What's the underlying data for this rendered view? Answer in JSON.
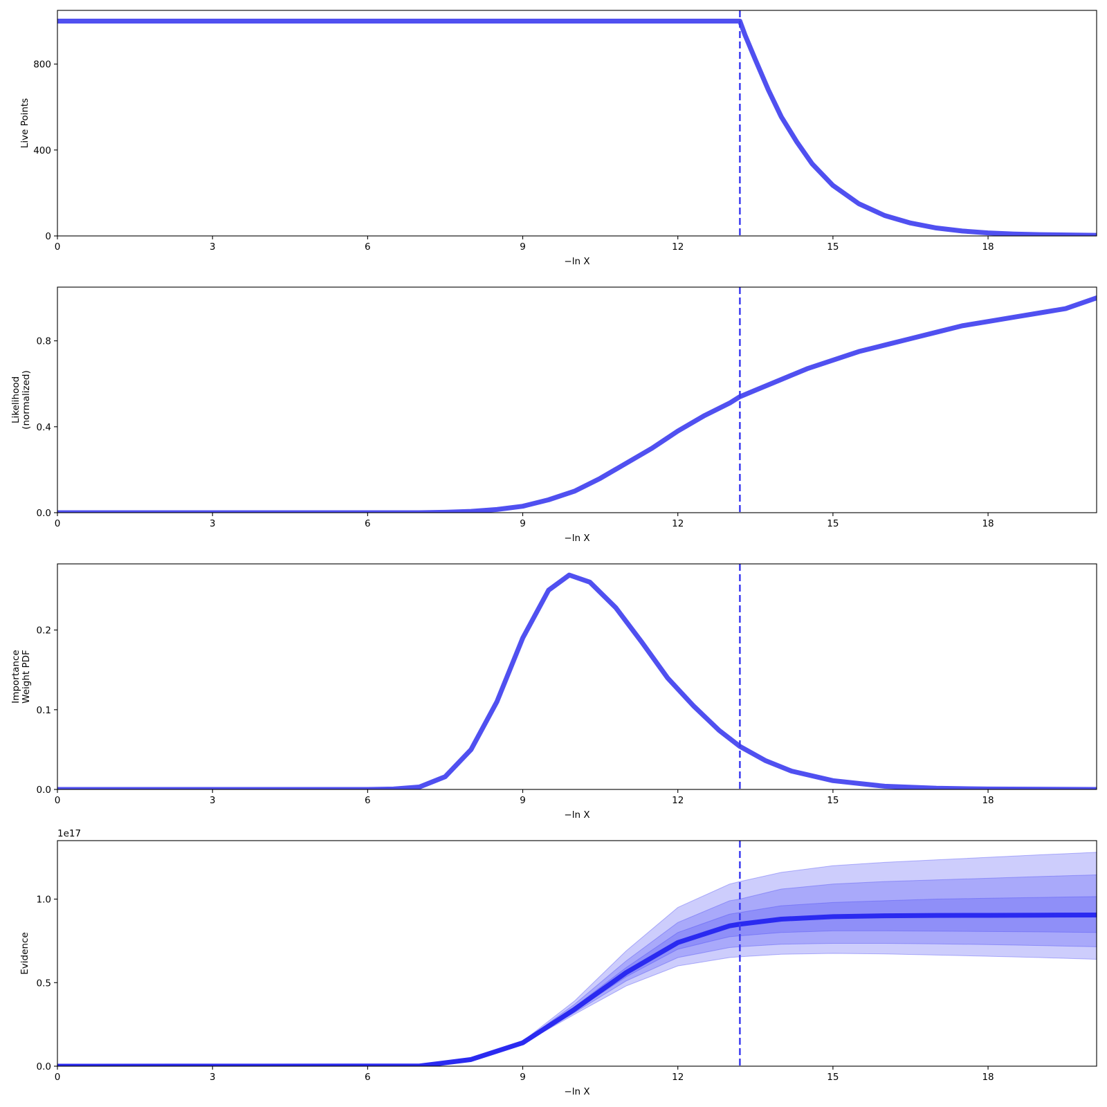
{
  "chart_data": [
    {
      "type": "line",
      "xlabel": "−ln X",
      "ylabel": "Live Points",
      "xlim": [
        0,
        20.1
      ],
      "ylim": [
        0,
        1050
      ],
      "xticks": [
        0,
        3,
        6,
        9,
        12,
        15,
        18
      ],
      "xtick_labels": [
        "0",
        "3",
        "6",
        "9",
        "12",
        "15",
        "18"
      ],
      "yticks": [
        0,
        400,
        800
      ],
      "ytick_labels": [
        "0",
        "400",
        "800"
      ],
      "vline_x": 13.2,
      "line_color": "#5050f0",
      "grid": false,
      "series": [
        {
          "x": [
            0,
            13.2,
            13.3,
            13.5,
            13.75,
            14.0,
            14.3,
            14.6,
            15.0,
            15.5,
            16.0,
            16.5,
            17.0,
            17.5,
            18.0,
            18.5,
            19.0,
            20.1
          ],
          "y": [
            1000,
            1000,
            935,
            820,
            680,
            555,
            438,
            335,
            235,
            150,
            95,
            60,
            37,
            23,
            14,
            9,
            6,
            3
          ]
        }
      ]
    },
    {
      "type": "line",
      "xlabel": "−ln X",
      "ylabel": "Likelihood\n(normalized)",
      "xlim": [
        0,
        20.1
      ],
      "ylim": [
        0,
        1.05
      ],
      "xticks": [
        0,
        3,
        6,
        9,
        12,
        15,
        18
      ],
      "xtick_labels": [
        "0",
        "3",
        "6",
        "9",
        "12",
        "15",
        "18"
      ],
      "yticks": [
        0,
        0.4,
        0.8
      ],
      "ytick_labels": [
        "0.0",
        "0.4",
        "0.8"
      ],
      "vline_x": 13.2,
      "line_color": "#5050f0",
      "grid": false,
      "series": [
        {
          "x": [
            0,
            6,
            7,
            7.5,
            8,
            8.5,
            9,
            9.5,
            10,
            10.5,
            11,
            11.5,
            12,
            12.5,
            13,
            13.2,
            13.5,
            14,
            14.5,
            15,
            15.5,
            16,
            16.5,
            17,
            17.5,
            18,
            18.5,
            19,
            19.5,
            20.1
          ],
          "y": [
            0,
            0,
            0,
            0.002,
            0.006,
            0.015,
            0.03,
            0.06,
            0.1,
            0.16,
            0.23,
            0.3,
            0.38,
            0.45,
            0.51,
            0.54,
            0.57,
            0.62,
            0.67,
            0.71,
            0.75,
            0.78,
            0.81,
            0.84,
            0.87,
            0.89,
            0.91,
            0.93,
            0.95,
            1.0
          ]
        }
      ]
    },
    {
      "type": "line",
      "xlabel": "−ln X",
      "ylabel": "Importance\nWeight PDF",
      "xlim": [
        0,
        20.1
      ],
      "ylim": [
        0,
        0.283
      ],
      "xticks": [
        0,
        3,
        6,
        9,
        12,
        15,
        18
      ],
      "xtick_labels": [
        "0",
        "3",
        "6",
        "9",
        "12",
        "15",
        "18"
      ],
      "yticks": [
        0,
        0.1,
        0.2
      ],
      "ytick_labels": [
        "0.0",
        "0.1",
        "0.2"
      ],
      "vline_x": 13.2,
      "line_color": "#5050f0",
      "grid": false,
      "series": [
        {
          "x": [
            0,
            6,
            6.5,
            7,
            7.5,
            8,
            8.5,
            9,
            9.5,
            9.9,
            10.3,
            10.8,
            11.3,
            11.8,
            12.3,
            12.8,
            13.2,
            13.7,
            14.2,
            15,
            16,
            17,
            18,
            20.1
          ],
          "y": [
            0,
            0,
            0.0005,
            0.003,
            0.016,
            0.05,
            0.11,
            0.19,
            0.25,
            0.269,
            0.26,
            0.228,
            0.185,
            0.14,
            0.105,
            0.074,
            0.054,
            0.036,
            0.023,
            0.011,
            0.004,
            0.0015,
            0.0005,
            0
          ]
        }
      ]
    },
    {
      "type": "area",
      "xlabel": "−ln X",
      "ylabel": "Evidence",
      "offset_text": "1e17",
      "xlim": [
        0,
        20.1
      ],
      "ylim": [
        0,
        1.35
      ],
      "xticks": [
        0,
        3,
        6,
        9,
        12,
        15,
        18
      ],
      "xtick_labels": [
        "0",
        "3",
        "6",
        "9",
        "12",
        "15",
        "18"
      ],
      "yticks": [
        0,
        0.5,
        1.0
      ],
      "ytick_labels": [
        "0.0",
        "0.5",
        "1.0"
      ],
      "vline_x": 13.2,
      "line_color": "#2a2af0",
      "band_color": "#4b4bf5",
      "grid": false,
      "x": [
        0,
        7,
        8,
        9,
        10,
        11,
        12,
        13,
        13.2,
        14,
        15,
        16,
        17,
        18,
        19,
        20.1
      ],
      "median": [
        0,
        0.001,
        0.04,
        0.14,
        0.34,
        0.56,
        0.74,
        0.84,
        0.85,
        0.88,
        0.895,
        0.9,
        0.902,
        0.903,
        0.904,
        0.905
      ],
      "bands": [
        {
          "lower": [
            0,
            0.001,
            0.04,
            0.135,
            0.31,
            0.48,
            0.6,
            0.65,
            0.655,
            0.67,
            0.675,
            0.672,
            0.665,
            0.658,
            0.65,
            0.64
          ],
          "upper": [
            0,
            0.001,
            0.045,
            0.15,
            0.39,
            0.69,
            0.95,
            1.09,
            1.105,
            1.16,
            1.2,
            1.22,
            1.235,
            1.25,
            1.265,
            1.28
          ]
        },
        {
          "lower": [
            0,
            0.001,
            0.04,
            0.137,
            0.32,
            0.51,
            0.65,
            0.71,
            0.715,
            0.73,
            0.735,
            0.735,
            0.732,
            0.728,
            0.722,
            0.715
          ],
          "upper": [
            0,
            0.001,
            0.043,
            0.147,
            0.37,
            0.63,
            0.86,
            0.99,
            1.0,
            1.06,
            1.09,
            1.105,
            1.115,
            1.125,
            1.135,
            1.145
          ]
        },
        {
          "lower": [
            0,
            0.001,
            0.04,
            0.138,
            0.33,
            0.535,
            0.7,
            0.775,
            0.78,
            0.8,
            0.81,
            0.81,
            0.808,
            0.806,
            0.804,
            0.8
          ],
          "upper": [
            0,
            0.001,
            0.042,
            0.145,
            0.355,
            0.59,
            0.8,
            0.91,
            0.92,
            0.96,
            0.98,
            0.99,
            1.0,
            1.005,
            1.01,
            1.015
          ]
        }
      ]
    }
  ]
}
